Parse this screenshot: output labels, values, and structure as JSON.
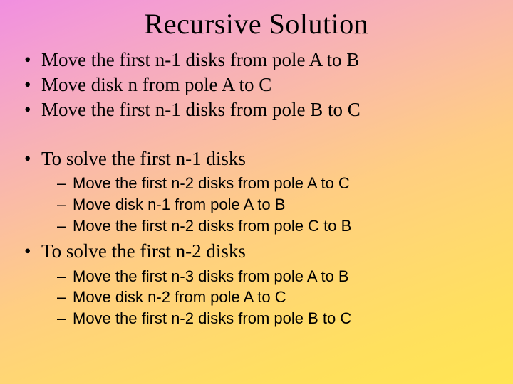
{
  "title_fontsize": 40,
  "lvl1_fontsize": 27,
  "lvl2_fontsize": 22,
  "lvl1_font": "Times New Roman",
  "lvl2_font": "Arial",
  "text_color": "#000000",
  "background_gradient": [
    "#f18fe0",
    "#f49fd0",
    "#f7b0b8",
    "#fbbf9f",
    "#ffce82",
    "#ffd870",
    "#ffe05e",
    "#ffe552"
  ],
  "gradient_angle_deg": 160,
  "slide": {
    "title": "Recursive Solution",
    "bullets": [
      {
        "text": "Move the first n-1 disks from pole A to B"
      },
      {
        "text": "Move disk n from pole A to C"
      },
      {
        "text": "Move the first n-1 disks from pole B to C"
      },
      {
        "text": "To solve the first n-1 disks",
        "sub": [
          "Move the first n-2 disks from pole A to C",
          "Move disk n-1 from pole A to B",
          "Move the first n-2 disks from pole C to B"
        ]
      },
      {
        "text": "To solve the first n-2 disks",
        "sub": [
          "Move the first n-3 disks from pole A to B",
          "Move disk n-2 from pole A to C",
          "Move the first n-2 disks from pole B to C"
        ]
      }
    ]
  }
}
